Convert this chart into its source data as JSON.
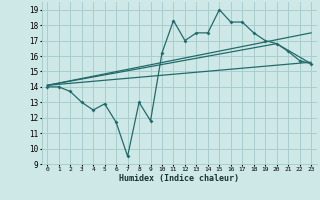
{
  "xlabel": "Humidex (Indice chaleur)",
  "bg_color": "#cde8e6",
  "grid_color": "#a8cece",
  "line_color": "#236b6b",
  "xlim": [
    -0.5,
    23.5
  ],
  "ylim": [
    9,
    19.5
  ],
  "yticks": [
    9,
    10,
    11,
    12,
    13,
    14,
    15,
    16,
    17,
    18,
    19
  ],
  "xticks": [
    0,
    1,
    2,
    3,
    4,
    5,
    6,
    7,
    8,
    9,
    10,
    11,
    12,
    13,
    14,
    15,
    16,
    17,
    18,
    19,
    20,
    21,
    22,
    23
  ],
  "jagged_x": [
    0,
    1,
    2,
    3,
    4,
    5,
    6,
    7,
    8,
    9,
    10,
    11,
    12,
    13,
    14,
    15,
    16,
    17,
    18,
    19,
    20,
    21,
    22,
    23
  ],
  "jagged_y": [
    14.0,
    14.0,
    13.7,
    13.0,
    12.5,
    12.9,
    11.7,
    9.5,
    13.0,
    11.8,
    16.2,
    18.3,
    17.0,
    17.5,
    17.5,
    19.0,
    18.2,
    18.2,
    17.5,
    17.0,
    16.8,
    16.3,
    15.7,
    15.5
  ],
  "trend1_x": [
    0,
    23
  ],
  "trend1_y": [
    14.1,
    17.5
  ],
  "trend2_x": [
    0,
    20,
    23
  ],
  "trend2_y": [
    14.1,
    16.8,
    15.5
  ],
  "trend3_x": [
    0,
    23
  ],
  "trend3_y": [
    14.1,
    15.6
  ]
}
